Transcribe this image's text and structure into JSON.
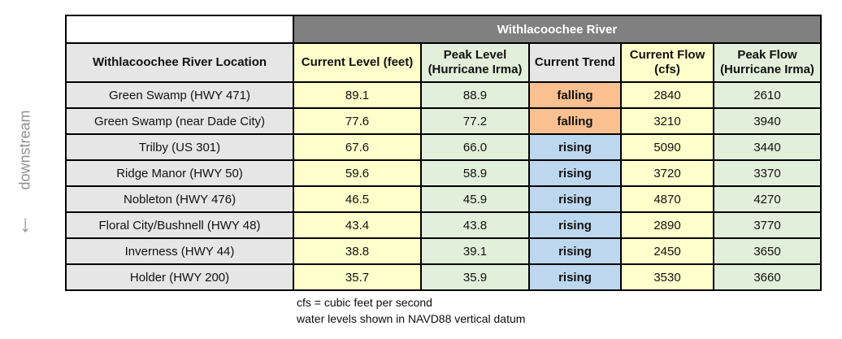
{
  "table": {
    "title": "Withlacoochee River",
    "columns": [
      {
        "label": "Withlacoochee River Location"
      },
      {
        "label": "Current Level (feet)"
      },
      {
        "label": "Peak Level (Hurricane Irma)"
      },
      {
        "label": "Current Trend"
      },
      {
        "label": "Current Flow (cfs)"
      },
      {
        "label": "Peak Flow (Hurricane Irma)"
      }
    ],
    "rows": [
      {
        "location": "Green Swamp (HWY 471)",
        "current_level": "89.1",
        "peak_level": "88.9",
        "trend": "falling",
        "current_flow": "2840",
        "peak_flow": "2610"
      },
      {
        "location": "Green Swamp (near Dade City)",
        "current_level": "77.6",
        "peak_level": "77.2",
        "trend": "falling",
        "current_flow": "3210",
        "peak_flow": "3940"
      },
      {
        "location": "Trilby (US 301)",
        "current_level": "67.6",
        "peak_level": "66.0",
        "trend": "rising",
        "current_flow": "5090",
        "peak_flow": "3440"
      },
      {
        "location": "Ridge Manor (HWY 50)",
        "current_level": "59.6",
        "peak_level": "58.9",
        "trend": "rising",
        "current_flow": "3720",
        "peak_flow": "3370"
      },
      {
        "location": "Nobleton (HWY 476)",
        "current_level": "46.5",
        "peak_level": "45.9",
        "trend": "rising",
        "current_flow": "4870",
        "peak_flow": "4270"
      },
      {
        "location": "Floral City/Bushnell (HWY 48)",
        "current_level": "43.4",
        "peak_level": "43.8",
        "trend": "rising",
        "current_flow": "2890",
        "peak_flow": "3770"
      },
      {
        "location": "Inverness (HWY 44)",
        "current_level": "38.8",
        "peak_level": "39.1",
        "trend": "rising",
        "current_flow": "2450",
        "peak_flow": "3650"
      },
      {
        "location": "Holder (HWY 200)",
        "current_level": "35.7",
        "peak_level": "35.9",
        "trend": "rising",
        "current_flow": "3530",
        "peak_flow": "3660"
      }
    ]
  },
  "side": {
    "label": "downstream",
    "arrow_icon": "↓"
  },
  "footnotes": [
    "cfs = cubic feet per second",
    "water levels shown in NAVD88 vertical datum"
  ],
  "colors": {
    "banner_bg": "#808080",
    "gray_bg": "#E7E6E6",
    "yellow_bg": "#FFFFCC",
    "green_bg": "#E2EFDA",
    "falling_bg": "#FAC090",
    "rising_bg": "#BDD7EE"
  },
  "chart_data": {
    "type": "table",
    "title": "Withlacoochee River",
    "columns": [
      "Withlacoochee River Location",
      "Current Level (feet)",
      "Peak Level (Hurricane Irma)",
      "Current Trend",
      "Current Flow (cfs)",
      "Peak Flow (Hurricane Irma)"
    ],
    "rows": [
      [
        "Green Swamp (HWY 471)",
        89.1,
        88.9,
        "falling",
        2840,
        2610
      ],
      [
        "Green Swamp (near Dade City)",
        77.6,
        77.2,
        "falling",
        3210,
        3940
      ],
      [
        "Trilby (US 301)",
        67.6,
        66.0,
        "rising",
        5090,
        3440
      ],
      [
        "Ridge Manor (HWY 50)",
        59.6,
        58.9,
        "rising",
        3720,
        3370
      ],
      [
        "Nobleton (HWY 476)",
        46.5,
        45.9,
        "rising",
        4870,
        4270
      ],
      [
        "Floral City/Bushnell (HWY 48)",
        43.4,
        43.8,
        "rising",
        2890,
        3770
      ],
      [
        "Inverness (HWY 44)",
        38.8,
        39.1,
        "rising",
        2450,
        3650
      ],
      [
        "Holder (HWY 200)",
        35.7,
        35.9,
        "rising",
        3530,
        3660
      ]
    ],
    "annotations": [
      "downstream (top to bottom)",
      "cfs = cubic feet per second",
      "water levels shown in NAVD88 vertical datum"
    ]
  }
}
